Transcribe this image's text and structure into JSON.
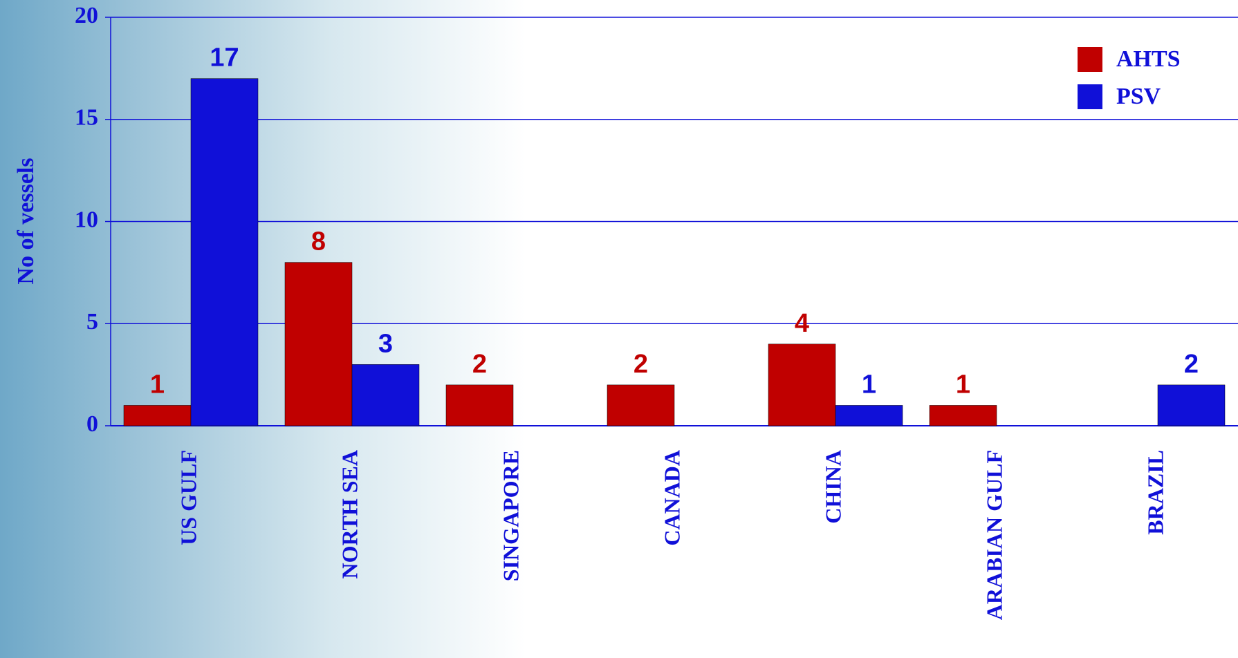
{
  "chart_data": {
    "type": "bar",
    "y_label": "No of vessels",
    "categories": [
      "US GULF",
      "NORTH SEA",
      "SINGAPORE",
      "CANADA",
      "CHINA",
      "ARABIAN GULF",
      "BRAZIL"
    ],
    "series": [
      {
        "name": "AHTS",
        "color": "#c00000",
        "values": [
          1,
          8,
          2,
          2,
          4,
          1,
          null
        ]
      },
      {
        "name": "PSV",
        "color": "#1010d8",
        "values": [
          17,
          3,
          null,
          null,
          1,
          null,
          2
        ]
      }
    ],
    "ylim": [
      0,
      20
    ],
    "yticks": [
      0,
      5,
      10,
      15,
      20
    ],
    "grid": true,
    "legend": "top-right"
  }
}
